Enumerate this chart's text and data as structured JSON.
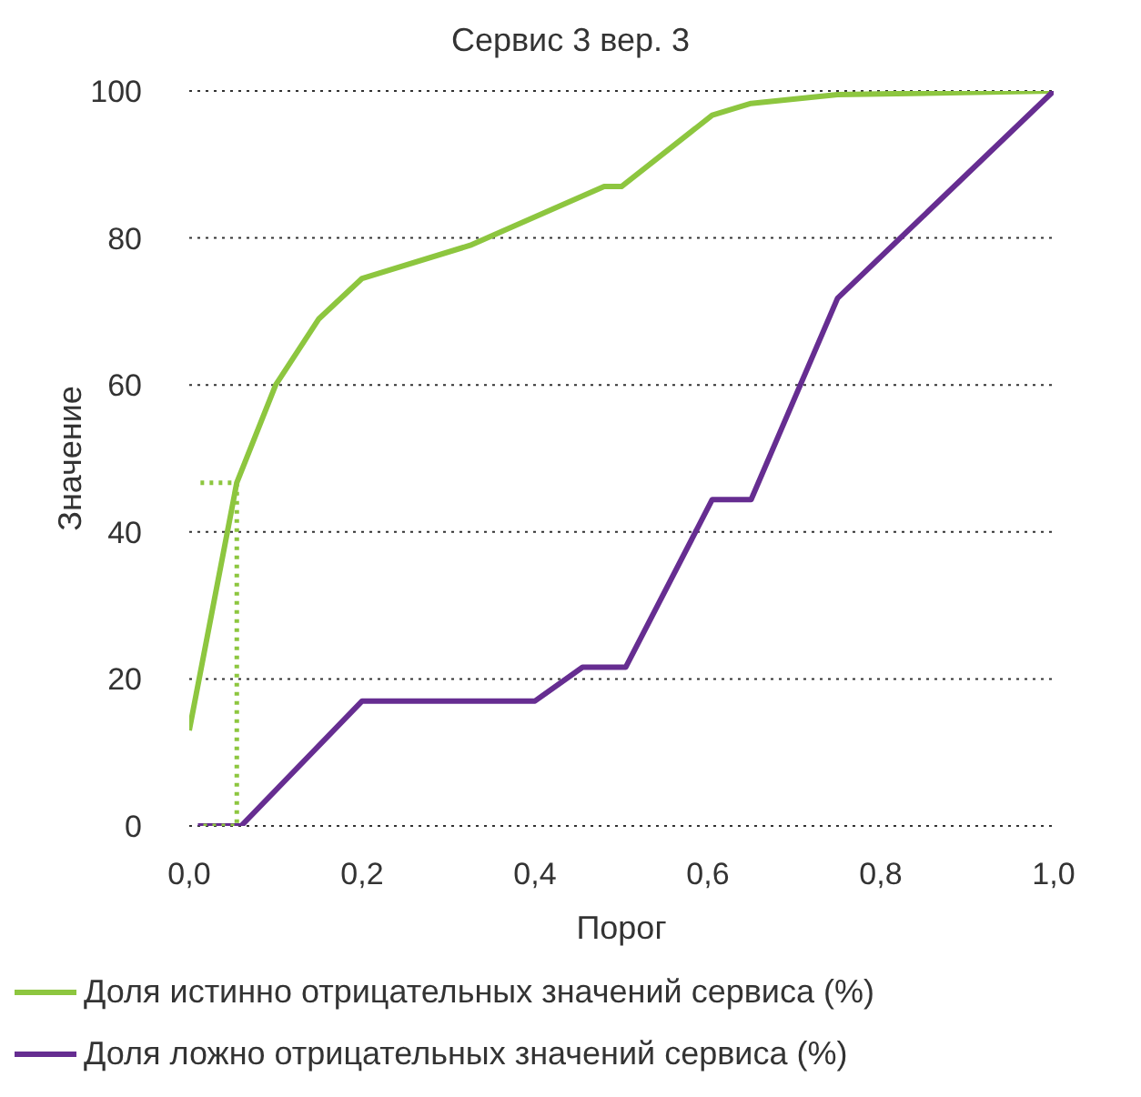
{
  "chart_data": {
    "type": "line",
    "title": "Сервис 3 вер. 3",
    "xlabel": "Порог",
    "ylabel": "Значение",
    "xlim": [
      0,
      1
    ],
    "xticks": [
      {
        "value": 0,
        "label": "0,0"
      },
      {
        "value": 0.2,
        "label": "0,2"
      },
      {
        "value": 0.4,
        "label": "0,4"
      },
      {
        "value": 0.6,
        "label": "0,6"
      },
      {
        "value": 0.8,
        "label": "0,8"
      },
      {
        "value": 1,
        "label": "1,0"
      }
    ],
    "ylim": [
      0,
      100
    ],
    "yticks": [
      0,
      20,
      40,
      60,
      80,
      100
    ],
    "grid": "y",
    "legend": "bottom",
    "marker": "none",
    "series": [
      {
        "name": "Доля истинно отрицательных значений сервиса (%)",
        "color": "#8dc63f",
        "x": [
          0,
          0.055,
          0.1,
          0.15,
          0.2,
          0.325,
          0.48,
          0.5,
          0.605,
          0.65,
          0.75,
          1
        ],
        "values": [
          13,
          46.7,
          60,
          69,
          74.5,
          79,
          87,
          87,
          96.7,
          98.3,
          99.5,
          100
        ]
      },
      {
        "name": "Доля ложно отрицательных значений сервиса (%)",
        "color": "#662d91",
        "x": [
          0.01,
          0.06,
          0.2,
          0.4,
          0.455,
          0.505,
          0.605,
          0.65,
          0.75,
          1
        ],
        "values": [
          0,
          0,
          17,
          17,
          21.6,
          21.6,
          44.4,
          44.4,
          71.8,
          100
        ]
      },
      {
        "color": "#8dc63f",
        "line_style": "dotted",
        "x": [
          0.013,
          0.055,
          0.055,
          0.013
        ],
        "values": [
          46.7,
          46.7,
          0,
          0
        ]
      }
    ]
  }
}
